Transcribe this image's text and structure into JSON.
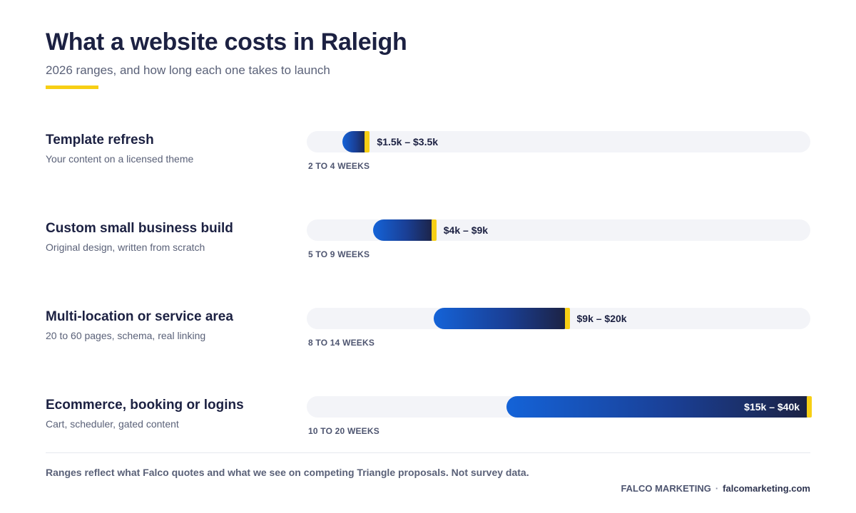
{
  "title": "What a website costs in Raleigh",
  "subtitle": "2026 ranges, and how long each one takes to launch",
  "chart_data": {
    "type": "bar",
    "subtype": "range",
    "title": "What a website costs in Raleigh",
    "subtitle": "2026 ranges, and how long each one takes to launch",
    "unit": "USD (thousands)",
    "xlim": [
      0,
      41
    ],
    "categories": [
      "Template refresh",
      "Custom small business build",
      "Multi-location or service area",
      "Ecommerce, booking or logins"
    ],
    "rows": [
      {
        "label": "Template refresh",
        "description": "Your content on a licensed theme",
        "low": 1.5,
        "high": 3.5,
        "range_text": "$1.5k – $3.5k",
        "timeline": "2 TO 4 WEEKS",
        "label_inside": false
      },
      {
        "label": "Custom small business build",
        "description": "Original design, written from scratch",
        "low": 4,
        "high": 9,
        "range_text": "$4k – $9k",
        "timeline": "5 TO 9 WEEKS",
        "label_inside": false
      },
      {
        "label": "Multi-location or service area",
        "description": "20 to 60 pages, schema, real linking",
        "low": 9,
        "high": 20,
        "range_text": "$9k – $20k",
        "timeline": "8 TO 14 WEEKS",
        "label_inside": false
      },
      {
        "label": "Ecommerce, booking or logins",
        "description": "Cart, scheduler, gated content",
        "low": 15,
        "high": 40,
        "range_text": "$15k – $40k",
        "timeline": "10 TO 20 WEEKS",
        "label_inside": true
      }
    ],
    "colors": {
      "bar_start": "#1463d8",
      "bar_end": "#1c2243",
      "cap": "#f7cf14",
      "track": "#f3f4f8"
    }
  },
  "footnote": "Ranges reflect what Falco quotes and what we see on competing Triangle proposals. Not survey data.",
  "footer": {
    "brand": "FALCO MARKETING",
    "separator": "·",
    "url": "falcomarketing.com"
  }
}
